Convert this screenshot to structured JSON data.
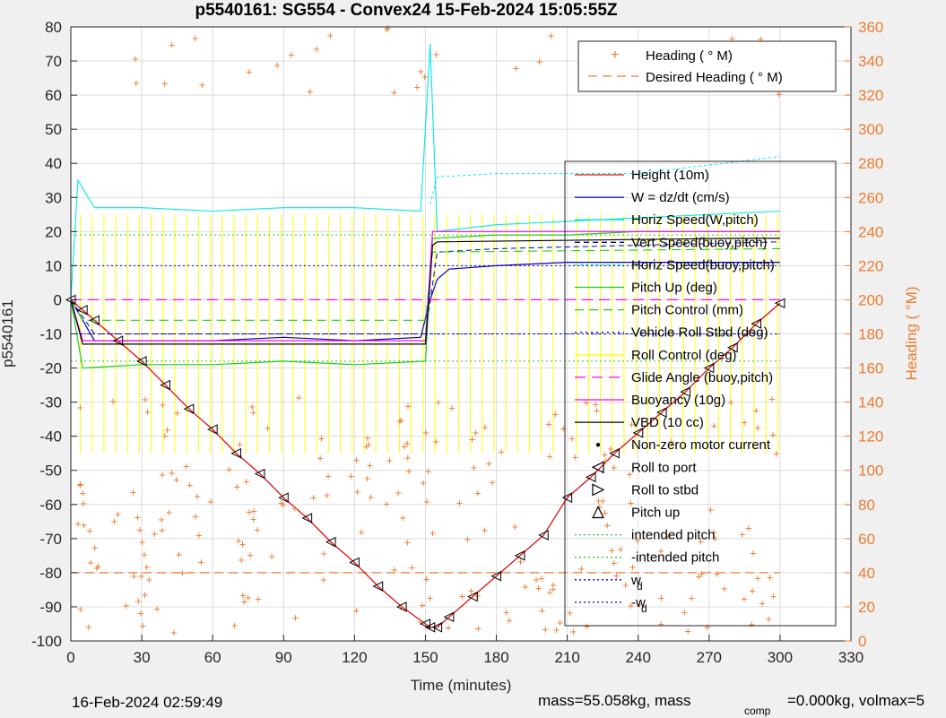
{
  "chart_data": {
    "type": "line",
    "title": "p5540161: SG554 - Convex24 15-Feb-2024 15:05:55Z",
    "xlabel": "Time (minutes)",
    "ylabel_left": "p5540161",
    "ylabel_right": "Heading (  °M)",
    "xlim": [
      0,
      330
    ],
    "ylim_left": [
      -100,
      80
    ],
    "ylim_right": [
      0,
      360
    ],
    "xticks": [
      0,
      30,
      60,
      90,
      120,
      150,
      180,
      210,
      240,
      270,
      300,
      330
    ],
    "yticks_left": [
      -100,
      -90,
      -80,
      -70,
      -60,
      -50,
      -40,
      -30,
      -20,
      -10,
      0,
      10,
      20,
      30,
      40,
      50,
      60,
      70,
      80
    ],
    "yticks_right": [
      0,
      20,
      40,
      60,
      80,
      100,
      120,
      140,
      160,
      180,
      200,
      220,
      240,
      260,
      280,
      300,
      320,
      340,
      360
    ],
    "grid": true,
    "legend_top": [
      "Heading (  ° M)",
      "Desired Heading (    ° M)"
    ],
    "legend_main": [
      "Height (10m)",
      "W = dz/dt (cm/s)",
      "Horiz Speed(W,pitch)",
      "Vert Speed(buoy,pitch)",
      "Horiz Speed(buoy,pitch)",
      "Pitch Up (deg)",
      "Pitch Control (mm)",
      "Vehicle Roll Stbd (deg)",
      "Roll Control (deg)",
      "Glide Angle (buoy,pitch)",
      "Buoyancy (10g)",
      "VBD (10 cc)",
      "Non-zero motor current",
      "Roll to port",
      "Roll to stbd",
      "Pitch up",
      "intended pitch",
      "-intended pitch",
      "w",
      "-w"
    ],
    "legend_subscript": "d",
    "series": [
      {
        "name": "Height (10m)",
        "x": [
          0,
          5,
          10,
          20,
          30,
          40,
          50,
          60,
          70,
          80,
          90,
          100,
          110,
          120,
          130,
          140,
          150,
          152,
          155,
          160,
          170,
          180,
          190,
          200,
          210,
          220,
          230,
          240,
          250,
          260,
          270,
          280,
          290,
          300
        ],
        "y": [
          0,
          -3,
          -6,
          -12,
          -18,
          -25,
          -32,
          -38,
          -45,
          -51,
          -58,
          -64,
          -71,
          -77,
          -84,
          -90,
          -95,
          -96,
          -96,
          -93,
          -87,
          -81,
          -75,
          -69,
          -58,
          -52,
          -45,
          -39,
          -33,
          -27,
          -20,
          -14,
          -7,
          -1
        ]
      },
      {
        "name": "W = dz/dt (cm/s)",
        "x": [
          0,
          10,
          30,
          60,
          90,
          120,
          148,
          152,
          155,
          160,
          180,
          210,
          240,
          270,
          300
        ],
        "y": [
          0,
          -12,
          -12,
          -12,
          -11,
          -12,
          -11,
          0,
          6,
          9,
          10,
          11,
          11,
          11,
          11
        ]
      },
      {
        "name": "Horiz Speed(W,pitch)",
        "x": [
          0,
          3,
          10,
          30,
          60,
          90,
          120,
          148,
          152,
          155,
          180,
          210,
          240,
          270,
          300
        ],
        "y": [
          0,
          35,
          27,
          27,
          26,
          27,
          27,
          26,
          75,
          20,
          22,
          23,
          24,
          25,
          26
        ]
      },
      {
        "name": "Vert Speed(buoy,pitch)",
        "x": [
          0,
          10,
          60,
          120,
          150,
          155,
          180,
          240,
          300
        ],
        "y": [
          0,
          -10,
          -10,
          -10,
          -10,
          14,
          15,
          16,
          17
        ]
      },
      {
        "name": "Horiz Speed(buoy,pitch)",
        "x": [
          152,
          155,
          180,
          240,
          300
        ],
        "y": [
          28,
          36,
          37,
          37,
          42
        ]
      },
      {
        "name": "Pitch Up (deg)",
        "x": [
          0,
          5,
          30,
          60,
          90,
          120,
          150,
          153,
          180,
          210,
          240,
          270,
          300
        ],
        "y": [
          0,
          -20,
          -19,
          -19,
          -18,
          -19,
          -18,
          18,
          19,
          19,
          20,
          20,
          20
        ]
      },
      {
        "name": "Pitch Control (mm)",
        "x": [
          0,
          5,
          150,
          153,
          300
        ],
        "y": [
          0,
          -6,
          -6,
          14,
          15
        ]
      },
      {
        "name": "Vehicle Roll Stbd (deg)",
        "x": [
          0,
          300
        ],
        "y": [
          -10,
          -10
        ]
      },
      {
        "name": "Glide Angle (buoy,pitch)",
        "x": [
          0,
          150,
          153,
          300
        ],
        "y": [
          0,
          0,
          0,
          0
        ]
      },
      {
        "name": "Buoyancy (10g)",
        "x": [
          0,
          5,
          150,
          153,
          300
        ],
        "y": [
          0,
          -12,
          -12,
          20,
          20
        ]
      },
      {
        "name": "VBD (10 cc)",
        "x": [
          0,
          5,
          150,
          153,
          155,
          280,
          300
        ],
        "y": [
          0,
          -13,
          -13,
          16,
          17,
          18,
          18
        ]
      },
      {
        "name": "intended pitch",
        "x": [
          0,
          300
        ],
        "y": [
          19,
          19
        ]
      },
      {
        "name": "-intended pitch",
        "x": [
          0,
          300
        ],
        "y": [
          -18,
          -18
        ]
      },
      {
        "name": "w",
        "x": [
          0,
          300
        ],
        "y": [
          10,
          10
        ]
      },
      {
        "name": "-w",
        "x": [
          0,
          300
        ],
        "y": [
          -10,
          -10
        ]
      }
    ],
    "desired_heading": 40
  },
  "footer": {
    "timestamp": "16-Feb-2024 02:59:49",
    "mass_text": "mass=55.058kg, mass",
    "comp_sub": "comp",
    "comp_text": "=0.000kg, volmax=5"
  },
  "colors": {
    "background": "#f0f0f0",
    "plot_bg": "#ffffff",
    "heading": "#ee7b2f",
    "height": "#e01010",
    "w": "#0000cc",
    "horiz_speed": "#00e8e8",
    "pitch": "#22cc22",
    "roll": "#ffff00",
    "glide": "#ff00ff",
    "vbd": "#000000"
  }
}
